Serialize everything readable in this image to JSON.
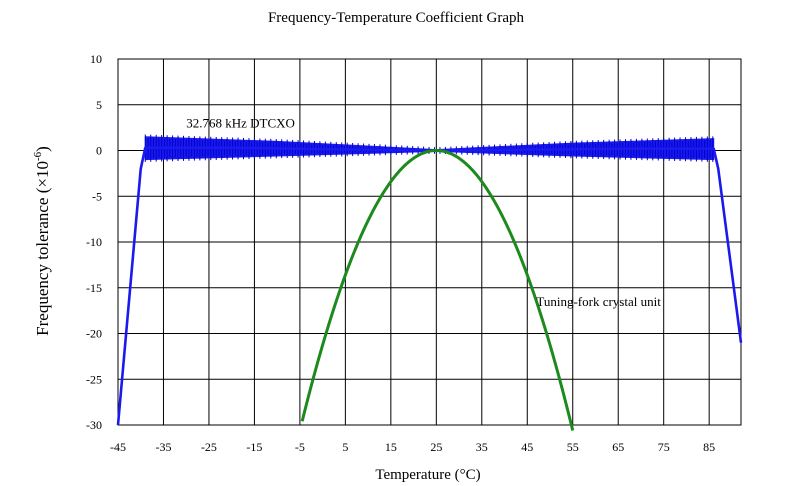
{
  "chart_data": {
    "type": "line",
    "title": "Frequency-Temperature Coefficient Graph",
    "xlabel": "Temperature (°C)",
    "ylabel_main": "Frequency tolerance (×10",
    "ylabel_sup": "-6",
    "ylabel_close": ")",
    "xlim": [
      -45,
      92
    ],
    "ylim": [
      -30,
      10
    ],
    "x_ticks": [
      -45,
      -35,
      -25,
      -15,
      -5,
      5,
      15,
      25,
      35,
      45,
      55,
      65,
      75,
      85
    ],
    "x_tick_labels": [
      "-45",
      "-35",
      "-25",
      "-15",
      "-5",
      "5",
      "15",
      "25",
      "35",
      "45",
      "55",
      "65",
      "75",
      "85"
    ],
    "y_ticks": [
      10,
      5,
      0,
      -5,
      -10,
      -15,
      -20,
      -25,
      -30
    ],
    "y_tick_labels": [
      "10",
      "5",
      "0",
      "-5",
      "-10",
      "-15",
      "-20",
      "-25",
      "-30"
    ],
    "grid": true,
    "series": [
      {
        "name": "32.768 kHz DTCXO",
        "color": "#1a1aee",
        "center": [
          [
            -45,
            -30
          ],
          [
            -40,
            -2
          ],
          [
            -39,
            0.3
          ],
          [
            -20,
            0.3
          ],
          [
            0,
            0.15
          ],
          [
            25,
            0
          ],
          [
            45,
            0.1
          ],
          [
            70,
            0.2
          ],
          [
            86,
            0.2
          ],
          [
            87,
            -2
          ],
          [
            92,
            -21
          ]
        ],
        "band_upper": [
          [
            -39,
            1.5
          ],
          [
            -10,
            1.0
          ],
          [
            25,
            0.1
          ],
          [
            55,
            0.8
          ],
          [
            86,
            1.3
          ]
        ],
        "band_lower": [
          [
            -39,
            -1.0
          ],
          [
            -10,
            -0.6
          ],
          [
            25,
            -0.1
          ],
          [
            55,
            -0.6
          ],
          [
            86,
            -1.0
          ]
        ]
      },
      {
        "name": "Tuning-fork crystal unit",
        "color": "#1c8a1c",
        "parabola": {
          "vertex_x": 25,
          "vertex_y": 0,
          "coefficient": -0.034,
          "x_range": [
            -4.5,
            55
          ]
        }
      }
    ],
    "annotations": [
      {
        "text": "32.768 kHz DTCXO",
        "x": -30,
        "y": 2.5
      },
      {
        "text": "Tuning-fork crystal unit",
        "x": 47,
        "y": -17
      }
    ]
  }
}
